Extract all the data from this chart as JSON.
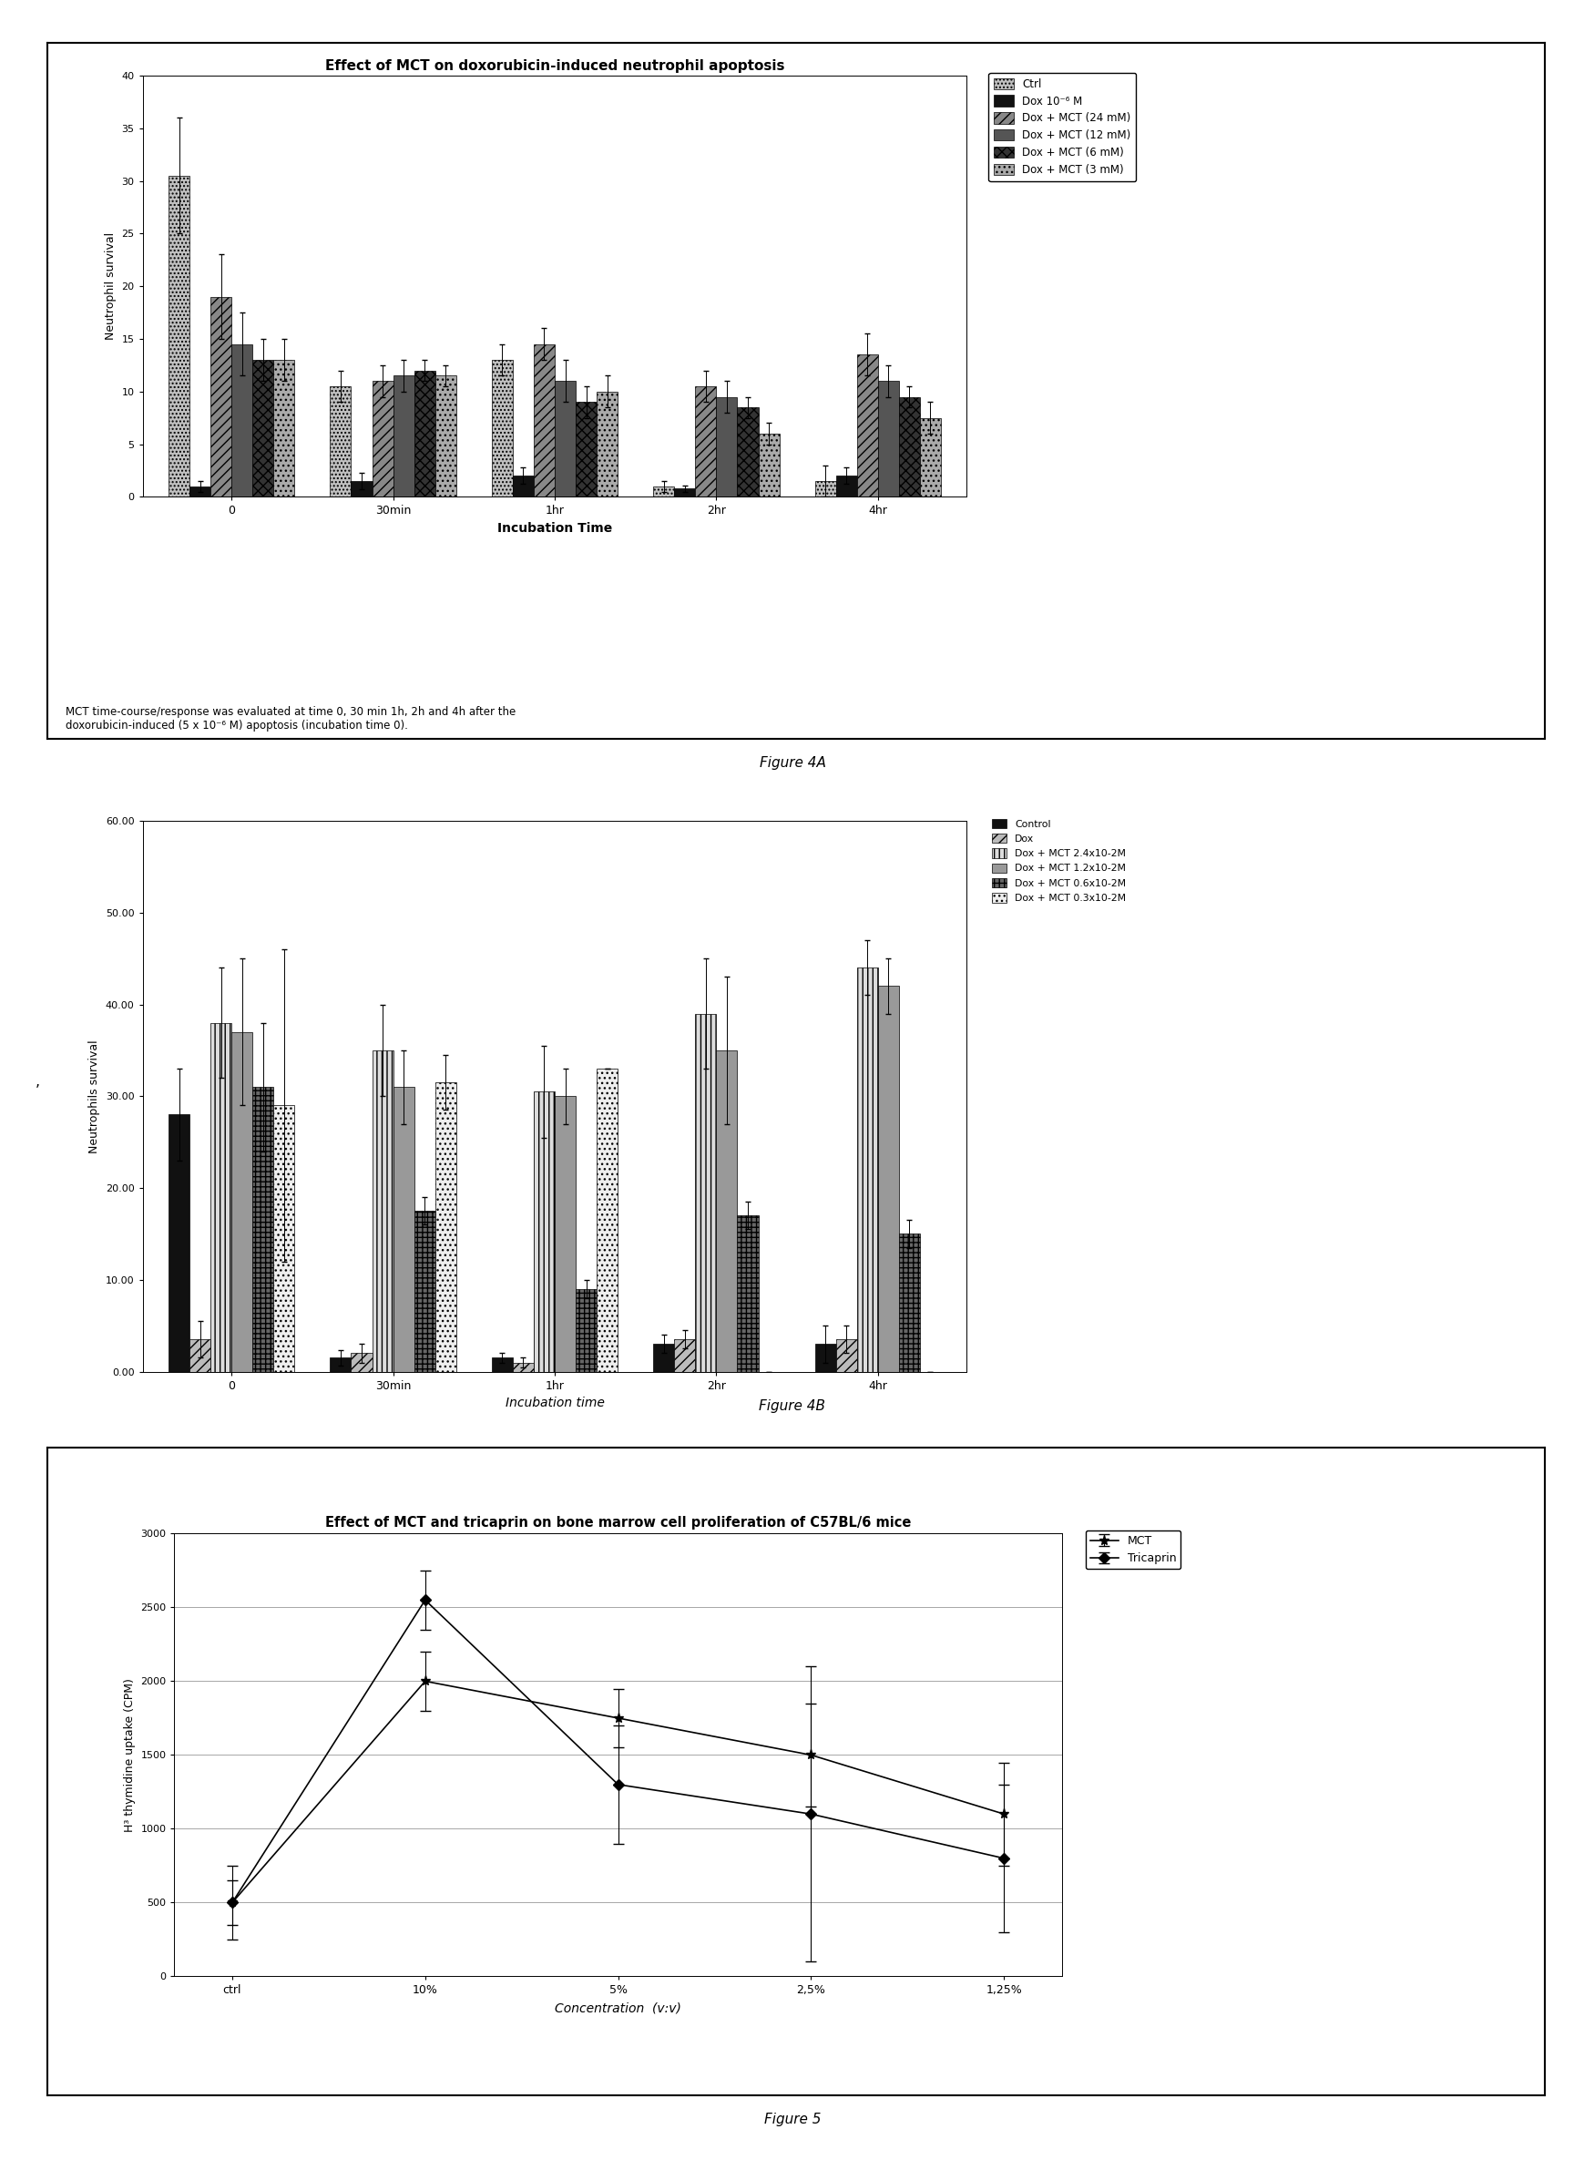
{
  "fig4a": {
    "title": "Effect of MCT on doxorubicin-induced neutrophil apoptosis",
    "xlabel": "Incubation Time",
    "ylabel": "Neutrophil survival",
    "categories": [
      "0",
      "30min",
      "1hr",
      "2hr",
      "4hr"
    ],
    "ylim": [
      0,
      40
    ],
    "yticks": [
      0,
      5,
      10,
      15,
      20,
      25,
      30,
      35,
      40
    ],
    "legend_labels": [
      "Ctrl",
      "Dox 10⁻⁶ M",
      "Dox + MCT (24 mM)",
      "Dox + MCT (12 mM)",
      "Dox + MCT (6 mM)",
      "Dox + MCT (3 mM)"
    ],
    "values": [
      [
        30.5,
        10.5,
        13.0,
        1.0,
        1.5
      ],
      [
        1.0,
        1.5,
        2.0,
        0.8,
        2.0
      ],
      [
        19.0,
        11.0,
        14.5,
        10.5,
        13.5
      ],
      [
        14.5,
        11.5,
        11.0,
        9.5,
        11.0
      ],
      [
        13.0,
        12.0,
        9.0,
        8.5,
        9.5
      ],
      [
        13.0,
        11.5,
        10.0,
        6.0,
        7.5
      ]
    ],
    "errors": [
      [
        5.5,
        1.5,
        1.5,
        0.5,
        1.5
      ],
      [
        0.5,
        0.8,
        0.8,
        0.3,
        0.8
      ],
      [
        4.0,
        1.5,
        1.5,
        1.5,
        2.0
      ],
      [
        3.0,
        1.5,
        2.0,
        1.5,
        1.5
      ],
      [
        2.0,
        1.0,
        1.5,
        1.0,
        1.0
      ],
      [
        2.0,
        1.0,
        1.5,
        1.0,
        1.5
      ]
    ],
    "caption": "MCT time-course/response was evaluated at time 0, 30 min 1h, 2h and 4h after the\ndoxorubicin-induced (5 x 10⁻⁶ M) apoptosis (incubation time 0).",
    "figure_label": "Figure 4A"
  },
  "fig4b": {
    "xlabel": "Incubation time",
    "ylabel": "Neutrophils survival",
    "categories": [
      "0",
      "30min",
      "1hr",
      "2hr",
      "4hr"
    ],
    "ylim": [
      0,
      60
    ],
    "yticks": [
      0.0,
      10.0,
      20.0,
      30.0,
      40.0,
      50.0,
      60.0
    ],
    "legend_labels": [
      "Control",
      "Dox",
      "Dox + MCT 2.4x10-2M",
      "Dox + MCT 1.2x10-2M",
      "Dox + MCT 0.6x10-2M",
      "Dox + MCT 0.3x10-2M"
    ],
    "values": [
      [
        28.0,
        1.5,
        1.5,
        3.0,
        3.0
      ],
      [
        3.5,
        2.0,
        1.0,
        3.5,
        3.5
      ],
      [
        38.0,
        35.0,
        30.5,
        39.0,
        44.0
      ],
      [
        37.0,
        31.0,
        30.0,
        35.0,
        42.0
      ],
      [
        31.0,
        17.5,
        9.0,
        17.0,
        15.0
      ],
      [
        29.0,
        31.5,
        33.0,
        0.0,
        0.0
      ]
    ],
    "errors": [
      [
        5.0,
        0.8,
        0.5,
        1.0,
        2.0
      ],
      [
        2.0,
        1.0,
        0.5,
        1.0,
        1.5
      ],
      [
        6.0,
        5.0,
        5.0,
        6.0,
        3.0
      ],
      [
        8.0,
        4.0,
        3.0,
        8.0,
        3.0
      ],
      [
        7.0,
        1.5,
        1.0,
        1.5,
        1.5
      ],
      [
        17.0,
        3.0,
        0.0,
        0.0,
        0.0
      ]
    ],
    "figure_label": "Figure 4B"
  },
  "fig5": {
    "title": "Effect of MCT and tricaprin on bone marrow cell proliferation of C57BL/6 mice",
    "xlabel": "Concentration  (v:v)",
    "ylabel": "H³ thymidine uptake (CPM)",
    "categories": [
      "ctrl",
      "10%",
      "5%",
      "2,5%",
      "1,25%"
    ],
    "ylim": [
      0,
      3000
    ],
    "yticks": [
      0,
      500,
      1000,
      1500,
      2000,
      2500,
      3000
    ],
    "mct_values": [
      500,
      2000,
      1750,
      1500,
      1100
    ],
    "mct_errors": [
      150,
      200,
      200,
      350,
      350
    ],
    "tricaprin_values": [
      500,
      2550,
      1300,
      1100,
      800
    ],
    "tricaprin_errors": [
      250,
      200,
      400,
      1000,
      500
    ],
    "figure_label": "Figure 5"
  }
}
